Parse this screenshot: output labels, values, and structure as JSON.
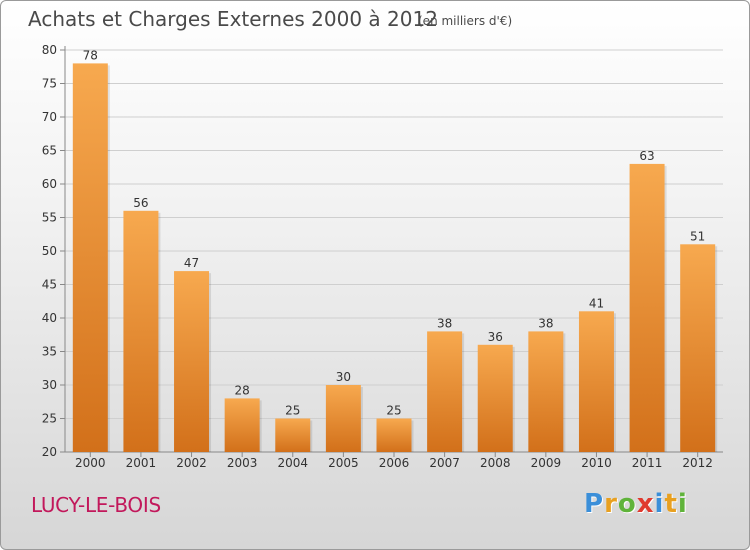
{
  "header": {
    "title": "Achats et Charges Externes 2000 à 2012",
    "subtitle": "(en milliers d'€)"
  },
  "footer": {
    "town": "LUCY-LE-BOIS",
    "logo_letters": [
      {
        "char": "P",
        "color": "#3b8fd9"
      },
      {
        "char": "r",
        "color": "#e8a020"
      },
      {
        "char": "o",
        "color": "#5fb33a"
      },
      {
        "char": "x",
        "color": "#e03a2f"
      },
      {
        "char": "i",
        "color": "#3b8fd9"
      },
      {
        "char": "t",
        "color": "#e8a020"
      },
      {
        "char": "i",
        "color": "#5fb33a"
      }
    ]
  },
  "colors": {
    "bar_top": "#f7a94f",
    "bar_bottom": "#d2701a",
    "grid": "#cfcfcf",
    "axis_text": "#333333",
    "town": "#c2185b"
  },
  "chart_data": {
    "type": "bar",
    "title": "Achats et Charges Externes 2000 à 2012",
    "subtitle": "(en milliers d'€)",
    "categories": [
      "2000",
      "2001",
      "2002",
      "2003",
      "2004",
      "2005",
      "2006",
      "2007",
      "2008",
      "2009",
      "2010",
      "2011",
      "2012"
    ],
    "values": [
      78,
      56,
      47,
      28,
      25,
      30,
      25,
      38,
      36,
      38,
      41,
      63,
      51
    ],
    "ylim": [
      20,
      80
    ],
    "yticks": [
      20,
      25,
      30,
      35,
      40,
      45,
      50,
      55,
      60,
      65,
      70,
      75,
      80
    ],
    "grid": true,
    "data_labels": true
  }
}
